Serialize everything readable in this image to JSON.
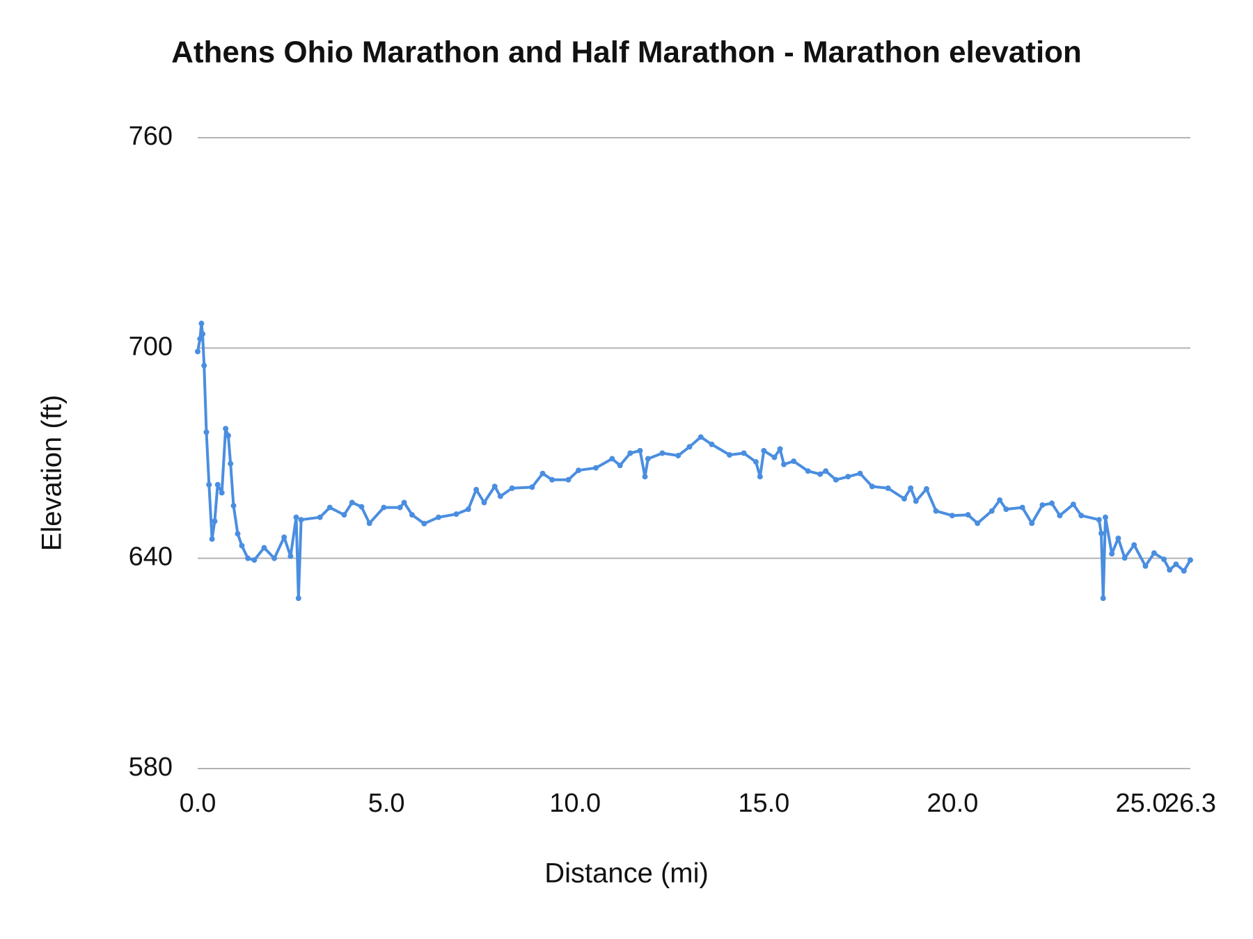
{
  "chart_data": {
    "type": "line",
    "title": "Athens Ohio Marathon and Half Marathon - Marathon elevation",
    "x_label": "Distance (mi)",
    "y_label": "Elevation (ft)",
    "color": "#4a8ee0",
    "grid": true,
    "markers": true,
    "xlim": [
      0,
      26.3
    ],
    "ylim": [
      580,
      760
    ],
    "xticks": [
      {
        "value": 0,
        "label": "0.0"
      },
      {
        "value": 5,
        "label": "5.0"
      },
      {
        "value": 10,
        "label": "10.0"
      },
      {
        "value": 15,
        "label": "15.0"
      },
      {
        "value": 20,
        "label": "20.0"
      },
      {
        "value": 25,
        "label": "25.0"
      },
      26.3
    ],
    "yticks": [
      580,
      640,
      700,
      760
    ],
    "x": [
      0,
      0.06,
      0.1,
      0.13,
      0.17,
      0.23,
      0.3,
      0.38,
      0.45,
      0.53,
      0.64,
      0.74,
      0.81,
      0.87,
      0.95,
      1.06,
      1.17,
      1.33,
      1.5,
      1.76,
      2.03,
      2.29,
      2.46,
      2.61,
      2.67,
      2.74,
      3.24,
      3.5,
      3.88,
      4.09,
      4.34,
      4.55,
      4.93,
      5.36,
      5.47,
      5.68,
      6.0,
      6.38,
      6.85,
      7.17,
      7.38,
      7.59,
      7.87,
      8.02,
      8.33,
      8.86,
      9.14,
      9.39,
      9.82,
      10.09,
      10.55,
      10.98,
      11.19,
      11.46,
      11.72,
      11.85,
      11.93,
      12.31,
      12.73,
      13.03,
      13.33,
      13.62,
      14.09,
      14.47,
      14.79,
      14.9,
      15.0,
      15.28,
      15.43,
      15.53,
      15.79,
      16.17,
      16.49,
      16.64,
      16.91,
      17.23,
      17.55,
      17.87,
      18.29,
      18.72,
      18.89,
      19.03,
      19.31,
      19.56,
      19.99,
      20.41,
      20.66,
      21.04,
      21.25,
      21.42,
      21.85,
      22.1,
      22.38,
      22.63,
      22.84,
      23.2,
      23.41,
      23.88,
      23.94,
      23.99,
      24.05,
      24.22,
      24.39,
      24.56,
      24.81,
      25.11,
      25.34,
      25.6,
      25.75,
      25.92,
      26.13,
      26.3
    ],
    "values": [
      699,
      702.6,
      707,
      704,
      695,
      676,
      661,
      645.5,
      650.6,
      661,
      658.7,
      677,
      675,
      667,
      655,
      647,
      643.6,
      640,
      639.5,
      643,
      640,
      646,
      640.6,
      651.7,
      628.6,
      651,
      651.7,
      654.5,
      652.4,
      655.9,
      654.7,
      650,
      654.5,
      654.5,
      655.9,
      652.4,
      649.9,
      651.7,
      652.6,
      654,
      659.6,
      655.9,
      660.5,
      657.7,
      660,
      660.3,
      664.2,
      662.4,
      662.4,
      665.1,
      665.8,
      668.4,
      666.5,
      670,
      670.7,
      663.3,
      668.4,
      670,
      669.3,
      671.8,
      674.6,
      672.5,
      669.5,
      670,
      667.5,
      663.3,
      670.7,
      668.8,
      671.2,
      666.8,
      667.7,
      664.9,
      664,
      664.9,
      662.4,
      663.3,
      664.2,
      660.5,
      660,
      657,
      660,
      656.3,
      659.8,
      653.5,
      652.2,
      652.4,
      650,
      653.5,
      656.6,
      654,
      654.5,
      650,
      655.2,
      655.7,
      652.2,
      655.4,
      652.2,
      651,
      647.1,
      628.6,
      651.7,
      641.3,
      645.7,
      640.1,
      643.8,
      637.8,
      641.5,
      639.7,
      636.7,
      638.3,
      636.4,
      639.5
    ]
  }
}
